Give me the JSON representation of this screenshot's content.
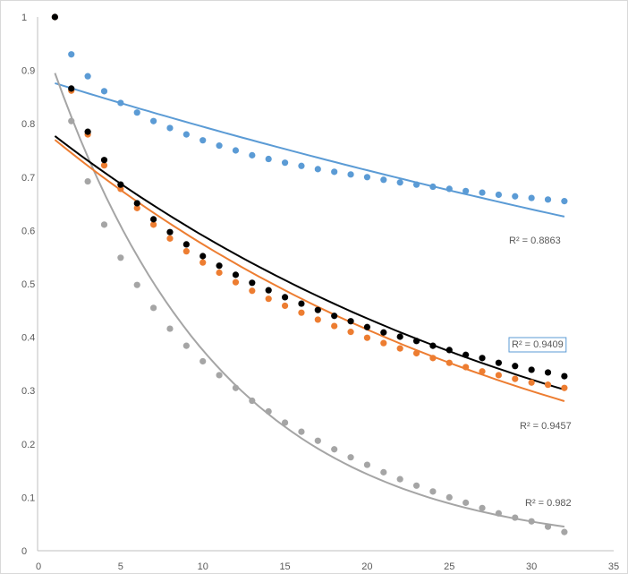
{
  "chart_data": {
    "type": "scatter",
    "title": "",
    "xlabel": "",
    "ylabel": "",
    "xlim": [
      0,
      35
    ],
    "ylim": [
      0,
      1
    ],
    "xticks": [
      "0",
      "5",
      "10",
      "15",
      "20",
      "25",
      "30",
      "35"
    ],
    "yticks": [
      "0",
      "0.1",
      "0.2",
      "0.3",
      "0.4",
      "0.5",
      "0.6",
      "0.7",
      "0.8",
      "0.9",
      "1"
    ],
    "grid": false,
    "legend": "none",
    "x": [
      1,
      2,
      3,
      4,
      5,
      6,
      7,
      8,
      9,
      10,
      11,
      12,
      13,
      14,
      15,
      16,
      17,
      18,
      19,
      20,
      21,
      22,
      23,
      24,
      25,
      26,
      27,
      28,
      29,
      30,
      31,
      32
    ],
    "series": [
      {
        "name": "blue",
        "color": "#5b9bd5",
        "values": [
          1.0,
          0.93,
          0.889,
          0.861,
          0.839,
          0.821,
          0.805,
          0.792,
          0.78,
          0.769,
          0.759,
          0.75,
          0.741,
          0.734,
          0.727,
          0.721,
          0.715,
          0.71,
          0.705,
          0.7,
          0.695,
          0.69,
          0.686,
          0.682,
          0.678,
          0.674,
          0.671,
          0.667,
          0.664,
          0.661,
          0.658,
          0.655
        ],
        "trendline": {
          "type": "exponential",
          "a": 0.8855,
          "b": -0.01084,
          "r2_label": "R² = 0.8863",
          "boxed": false
        }
      },
      {
        "name": "gray",
        "color": "#a5a5a5",
        "values": [
          1.0,
          0.805,
          0.692,
          0.611,
          0.549,
          0.498,
          0.455,
          0.416,
          0.384,
          0.355,
          0.329,
          0.305,
          0.281,
          0.261,
          0.24,
          0.223,
          0.206,
          0.19,
          0.175,
          0.161,
          0.147,
          0.134,
          0.122,
          0.111,
          0.1,
          0.09,
          0.08,
          0.07,
          0.062,
          0.055,
          0.045,
          0.035
        ],
        "trendline": {
          "type": "exponential",
          "a": 0.9856,
          "b": -0.0964,
          "r2_label": "R² = 0.982",
          "boxed": false
        }
      },
      {
        "name": "orange",
        "color": "#ed7d31",
        "values": [
          1.0,
          0.862,
          0.78,
          0.722,
          0.678,
          0.642,
          0.611,
          0.585,
          0.561,
          0.54,
          0.521,
          0.503,
          0.487,
          0.472,
          0.459,
          0.446,
          0.433,
          0.421,
          0.41,
          0.399,
          0.389,
          0.379,
          0.37,
          0.361,
          0.352,
          0.344,
          0.336,
          0.329,
          0.322,
          0.315,
          0.311,
          0.305
        ],
        "trendline": {
          "type": "exponential",
          "a": 0.7955,
          "b": -0.0326,
          "r2_label": "R² = 0.9457",
          "boxed": false
        }
      },
      {
        "name": "black",
        "color": "#000000",
        "values": [
          1.0,
          0.866,
          0.785,
          0.732,
          0.686,
          0.651,
          0.621,
          0.597,
          0.574,
          0.552,
          0.534,
          0.517,
          0.502,
          0.488,
          0.475,
          0.463,
          0.451,
          0.44,
          0.43,
          0.419,
          0.409,
          0.401,
          0.393,
          0.384,
          0.376,
          0.367,
          0.361,
          0.352,
          0.346,
          0.339,
          0.334,
          0.327
        ],
        "trendline": {
          "type": "exponential",
          "a": 0.801,
          "b": -0.0305,
          "r2_label": "R² = 0.9409",
          "boxed": true,
          "box_color": "#5b9bd5"
        }
      }
    ]
  }
}
